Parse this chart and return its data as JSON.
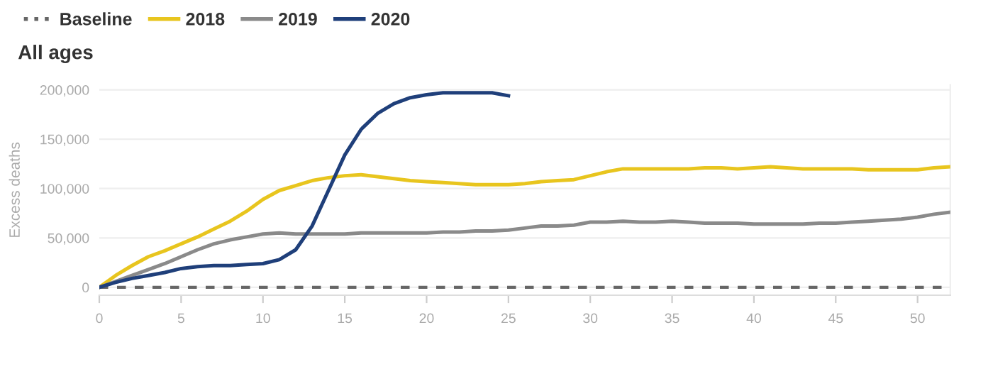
{
  "chart_data": {
    "type": "line",
    "title": "All ages",
    "ylabel": "Excess deaths",
    "xlim": [
      0,
      52
    ],
    "xticks": [
      0,
      5,
      10,
      15,
      20,
      25,
      30,
      35,
      40,
      45,
      50
    ],
    "ylim": [
      -8000,
      205000
    ],
    "yticks": [
      {
        "value": 0,
        "label": "0"
      },
      {
        "value": 50000,
        "label": "50,000"
      },
      {
        "value": 100000,
        "label": "100,000"
      },
      {
        "value": 150000,
        "label": "150,000"
      },
      {
        "value": 200000,
        "label": "200,000"
      }
    ],
    "grid": "y",
    "legend": "top left",
    "marker": "none",
    "series": [
      {
        "name": "Baseline",
        "color": "#666666",
        "line_style": "dashed",
        "x": [
          0,
          52
        ],
        "values": [
          0,
          0
        ]
      },
      {
        "name": "2018",
        "color": "#e8c51e",
        "x": [
          0,
          1,
          2,
          3,
          4,
          5,
          6,
          7,
          8,
          9,
          10,
          11,
          12,
          13,
          14,
          15,
          16,
          17,
          18,
          19,
          20,
          21,
          22,
          23,
          24,
          25,
          26,
          27,
          28,
          29,
          30,
          31,
          32,
          33,
          34,
          35,
          36,
          37,
          38,
          39,
          40,
          41,
          42,
          43,
          44,
          45,
          46,
          47,
          48,
          49,
          50,
          51,
          52
        ],
        "values": [
          0,
          12000,
          22000,
          31000,
          37000,
          44000,
          51000,
          59000,
          67000,
          77000,
          89000,
          98000,
          103000,
          108000,
          111000,
          113000,
          114000,
          112000,
          110000,
          108000,
          107000,
          106000,
          105000,
          104000,
          104000,
          104000,
          105000,
          107000,
          108000,
          109000,
          113000,
          117000,
          120000,
          120000,
          120000,
          120000,
          120000,
          121000,
          121000,
          120000,
          121000,
          122000,
          121000,
          120000,
          120000,
          120000,
          120000,
          119000,
          119000,
          119000,
          119000,
          121000,
          122000
        ]
      },
      {
        "name": "2019",
        "color": "#8a8a8a",
        "x": [
          0,
          1,
          2,
          3,
          4,
          5,
          6,
          7,
          8,
          9,
          10,
          11,
          12,
          13,
          14,
          15,
          16,
          17,
          18,
          19,
          20,
          21,
          22,
          23,
          24,
          25,
          26,
          27,
          28,
          29,
          30,
          31,
          32,
          33,
          34,
          35,
          36,
          37,
          38,
          39,
          40,
          41,
          42,
          43,
          44,
          45,
          46,
          47,
          48,
          49,
          50,
          51,
          52
        ],
        "values": [
          0,
          6000,
          12000,
          18000,
          24000,
          31000,
          38000,
          44000,
          48000,
          51000,
          54000,
          55000,
          54000,
          54000,
          54000,
          54000,
          55000,
          55000,
          55000,
          55000,
          55000,
          56000,
          56000,
          57000,
          57000,
          58000,
          60000,
          62000,
          62000,
          63000,
          66000,
          66000,
          67000,
          66000,
          66000,
          67000,
          66000,
          65000,
          65000,
          65000,
          64000,
          64000,
          64000,
          64000,
          65000,
          65000,
          66000,
          67000,
          68000,
          69000,
          71000,
          74000,
          76000
        ]
      },
      {
        "name": "2020",
        "color": "#1f3f7a",
        "x": [
          0,
          1,
          2,
          3,
          4,
          5,
          6,
          7,
          8,
          9,
          10,
          11,
          12,
          13,
          14,
          15,
          16,
          17,
          18,
          19,
          20,
          21,
          22,
          23,
          24,
          25
        ],
        "values": [
          0,
          5000,
          9000,
          12000,
          15000,
          19000,
          21000,
          22000,
          22000,
          23000,
          24000,
          28000,
          38000,
          62000,
          98000,
          134000,
          160000,
          176000,
          186000,
          192000,
          195000,
          197000,
          197000,
          197000,
          197000,
          194000
        ]
      }
    ]
  }
}
